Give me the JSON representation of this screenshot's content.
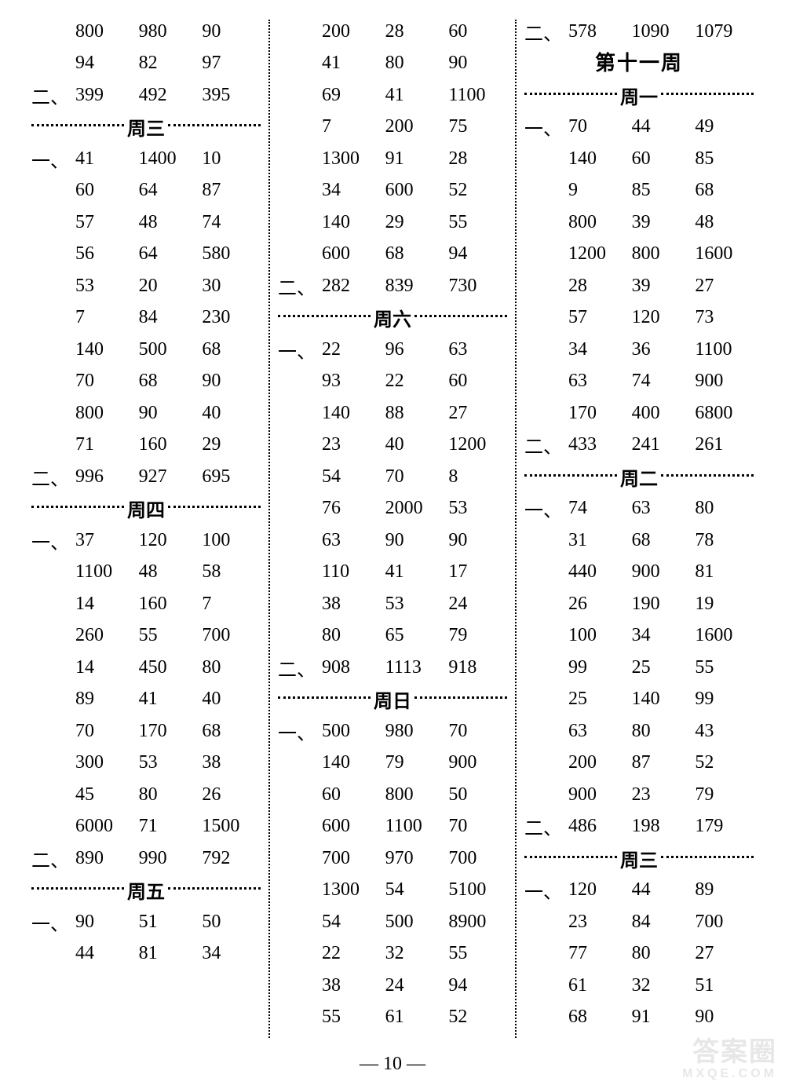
{
  "page_number": "— 10 —",
  "watermark": {
    "main": "答案圈",
    "sub": "MXQE.COM"
  },
  "prefixes": {
    "one": "一、",
    "two": "二、"
  },
  "columns": [
    {
      "items": [
        {
          "type": "row",
          "prefix": "",
          "cells": [
            "800",
            "980",
            "90"
          ]
        },
        {
          "type": "row",
          "prefix": "",
          "cells": [
            "94",
            "82",
            "97"
          ]
        },
        {
          "type": "row",
          "prefix": "two",
          "cells": [
            "399",
            "492",
            "395"
          ]
        },
        {
          "type": "day",
          "label": "周三"
        },
        {
          "type": "row",
          "prefix": "one",
          "cells": [
            "41",
            "1400",
            "10"
          ]
        },
        {
          "type": "row",
          "prefix": "",
          "cells": [
            "60",
            "64",
            "87"
          ]
        },
        {
          "type": "row",
          "prefix": "",
          "cells": [
            "57",
            "48",
            "74"
          ]
        },
        {
          "type": "row",
          "prefix": "",
          "cells": [
            "56",
            "64",
            "580"
          ]
        },
        {
          "type": "row",
          "prefix": "",
          "cells": [
            "53",
            "20",
            "30"
          ]
        },
        {
          "type": "row",
          "prefix": "",
          "cells": [
            "7",
            "84",
            "230"
          ]
        },
        {
          "type": "row",
          "prefix": "",
          "cells": [
            "140",
            "500",
            "68"
          ]
        },
        {
          "type": "row",
          "prefix": "",
          "cells": [
            "70",
            "68",
            "90"
          ]
        },
        {
          "type": "row",
          "prefix": "",
          "cells": [
            "800",
            "90",
            "40"
          ]
        },
        {
          "type": "row",
          "prefix": "",
          "cells": [
            "71",
            "160",
            "29"
          ]
        },
        {
          "type": "row",
          "prefix": "two",
          "cells": [
            "996",
            "927",
            "695"
          ]
        },
        {
          "type": "day",
          "label": "周四"
        },
        {
          "type": "row",
          "prefix": "one",
          "cells": [
            "37",
            "120",
            "100"
          ]
        },
        {
          "type": "row",
          "prefix": "",
          "cells": [
            "1100",
            "48",
            "58"
          ]
        },
        {
          "type": "row",
          "prefix": "",
          "cells": [
            "14",
            "160",
            "7"
          ]
        },
        {
          "type": "row",
          "prefix": "",
          "cells": [
            "260",
            "55",
            "700"
          ]
        },
        {
          "type": "row",
          "prefix": "",
          "cells": [
            "14",
            "450",
            "80"
          ]
        },
        {
          "type": "row",
          "prefix": "",
          "cells": [
            "89",
            "41",
            "40"
          ]
        },
        {
          "type": "row",
          "prefix": "",
          "cells": [
            "70",
            "170",
            "68"
          ]
        },
        {
          "type": "row",
          "prefix": "",
          "cells": [
            "300",
            "53",
            "38"
          ]
        },
        {
          "type": "row",
          "prefix": "",
          "cells": [
            "45",
            "80",
            "26"
          ]
        },
        {
          "type": "row",
          "prefix": "",
          "cells": [
            "6000",
            "71",
            "1500"
          ]
        },
        {
          "type": "row",
          "prefix": "two",
          "cells": [
            "890",
            "990",
            "792"
          ]
        },
        {
          "type": "day",
          "label": "周五"
        },
        {
          "type": "row",
          "prefix": "one",
          "cells": [
            "90",
            "51",
            "50"
          ]
        },
        {
          "type": "row",
          "prefix": "",
          "cells": [
            "44",
            "81",
            "34"
          ]
        }
      ]
    },
    {
      "items": [
        {
          "type": "row",
          "prefix": "",
          "cells": [
            "200",
            "28",
            "60"
          ]
        },
        {
          "type": "row",
          "prefix": "",
          "cells": [
            "41",
            "80",
            "90"
          ]
        },
        {
          "type": "row",
          "prefix": "",
          "cells": [
            "69",
            "41",
            "1100"
          ]
        },
        {
          "type": "row",
          "prefix": "",
          "cells": [
            "7",
            "200",
            "75"
          ]
        },
        {
          "type": "row",
          "prefix": "",
          "cells": [
            "1300",
            "91",
            "28"
          ]
        },
        {
          "type": "row",
          "prefix": "",
          "cells": [
            "34",
            "600",
            "52"
          ]
        },
        {
          "type": "row",
          "prefix": "",
          "cells": [
            "140",
            "29",
            "55"
          ]
        },
        {
          "type": "row",
          "prefix": "",
          "cells": [
            "600",
            "68",
            "94"
          ]
        },
        {
          "type": "row",
          "prefix": "two",
          "cells": [
            "282",
            "839",
            "730"
          ]
        },
        {
          "type": "day",
          "label": "周六"
        },
        {
          "type": "row",
          "prefix": "one",
          "cells": [
            "22",
            "96",
            "63"
          ]
        },
        {
          "type": "row",
          "prefix": "",
          "cells": [
            "93",
            "22",
            "60"
          ]
        },
        {
          "type": "row",
          "prefix": "",
          "cells": [
            "140",
            "88",
            "27"
          ]
        },
        {
          "type": "row",
          "prefix": "",
          "cells": [
            "23",
            "40",
            "1200"
          ]
        },
        {
          "type": "row",
          "prefix": "",
          "cells": [
            "54",
            "70",
            "8"
          ]
        },
        {
          "type": "row",
          "prefix": "",
          "cells": [
            "76",
            "2000",
            "53"
          ]
        },
        {
          "type": "row",
          "prefix": "",
          "cells": [
            "63",
            "90",
            "90"
          ]
        },
        {
          "type": "row",
          "prefix": "",
          "cells": [
            "110",
            "41",
            "17"
          ]
        },
        {
          "type": "row",
          "prefix": "",
          "cells": [
            "38",
            "53",
            "24"
          ]
        },
        {
          "type": "row",
          "prefix": "",
          "cells": [
            "80",
            "65",
            "79"
          ]
        },
        {
          "type": "row",
          "prefix": "two",
          "cells": [
            "908",
            "1113",
            "918"
          ]
        },
        {
          "type": "day",
          "label": "周日"
        },
        {
          "type": "row",
          "prefix": "one",
          "cells": [
            "500",
            "980",
            "70"
          ]
        },
        {
          "type": "row",
          "prefix": "",
          "cells": [
            "140",
            "79",
            "900"
          ]
        },
        {
          "type": "row",
          "prefix": "",
          "cells": [
            "60",
            "800",
            "50"
          ]
        },
        {
          "type": "row",
          "prefix": "",
          "cells": [
            "600",
            "1100",
            "70"
          ]
        },
        {
          "type": "row",
          "prefix": "",
          "cells": [
            "700",
            "970",
            "700"
          ]
        },
        {
          "type": "row",
          "prefix": "",
          "cells": [
            "1300",
            "54",
            "5100"
          ]
        },
        {
          "type": "row",
          "prefix": "",
          "cells": [
            "54",
            "500",
            "8900"
          ]
        },
        {
          "type": "row",
          "prefix": "",
          "cells": [
            "22",
            "32",
            "55"
          ]
        },
        {
          "type": "row",
          "prefix": "",
          "cells": [
            "38",
            "24",
            "94"
          ]
        },
        {
          "type": "row",
          "prefix": "",
          "cells": [
            "55",
            "61",
            "52"
          ]
        }
      ]
    },
    {
      "items": [
        {
          "type": "row",
          "prefix": "two",
          "cells": [
            "578",
            "1090",
            "1079"
          ]
        },
        {
          "type": "week",
          "label": "第十一周"
        },
        {
          "type": "day",
          "label": "周一"
        },
        {
          "type": "row",
          "prefix": "one",
          "cells": [
            "70",
            "44",
            "49"
          ]
        },
        {
          "type": "row",
          "prefix": "",
          "cells": [
            "140",
            "60",
            "85"
          ]
        },
        {
          "type": "row",
          "prefix": "",
          "cells": [
            "9",
            "85",
            "68"
          ]
        },
        {
          "type": "row",
          "prefix": "",
          "cells": [
            "800",
            "39",
            "48"
          ]
        },
        {
          "type": "row",
          "prefix": "",
          "cells": [
            "1200",
            "800",
            "1600"
          ]
        },
        {
          "type": "row",
          "prefix": "",
          "cells": [
            "28",
            "39",
            "27"
          ]
        },
        {
          "type": "row",
          "prefix": "",
          "cells": [
            "57",
            "120",
            "73"
          ]
        },
        {
          "type": "row",
          "prefix": "",
          "cells": [
            "34",
            "36",
            "1100"
          ]
        },
        {
          "type": "row",
          "prefix": "",
          "cells": [
            "63",
            "74",
            "900"
          ]
        },
        {
          "type": "row",
          "prefix": "",
          "cells": [
            "170",
            "400",
            "6800"
          ]
        },
        {
          "type": "row",
          "prefix": "two",
          "cells": [
            "433",
            "241",
            "261"
          ]
        },
        {
          "type": "day",
          "label": "周二"
        },
        {
          "type": "row",
          "prefix": "one",
          "cells": [
            "74",
            "63",
            "80"
          ]
        },
        {
          "type": "row",
          "prefix": "",
          "cells": [
            "31",
            "68",
            "78"
          ]
        },
        {
          "type": "row",
          "prefix": "",
          "cells": [
            "440",
            "900",
            "81"
          ]
        },
        {
          "type": "row",
          "prefix": "",
          "cells": [
            "26",
            "190",
            "19"
          ]
        },
        {
          "type": "row",
          "prefix": "",
          "cells": [
            "100",
            "34",
            "1600"
          ]
        },
        {
          "type": "row",
          "prefix": "",
          "cells": [
            "99",
            "25",
            "55"
          ]
        },
        {
          "type": "row",
          "prefix": "",
          "cells": [
            "25",
            "140",
            "99"
          ]
        },
        {
          "type": "row",
          "prefix": "",
          "cells": [
            "63",
            "80",
            "43"
          ]
        },
        {
          "type": "row",
          "prefix": "",
          "cells": [
            "200",
            "87",
            "52"
          ]
        },
        {
          "type": "row",
          "prefix": "",
          "cells": [
            "900",
            "23",
            "79"
          ]
        },
        {
          "type": "row",
          "prefix": "two",
          "cells": [
            "486",
            "198",
            "179"
          ]
        },
        {
          "type": "day",
          "label": "周三"
        },
        {
          "type": "row",
          "prefix": "one",
          "cells": [
            "120",
            "44",
            "89"
          ]
        },
        {
          "type": "row",
          "prefix": "",
          "cells": [
            "23",
            "84",
            "700"
          ]
        },
        {
          "type": "row",
          "prefix": "",
          "cells": [
            "77",
            "80",
            "27"
          ]
        },
        {
          "type": "row",
          "prefix": "",
          "cells": [
            "61",
            "32",
            "51"
          ]
        },
        {
          "type": "row",
          "prefix": "",
          "cells": [
            "68",
            "91",
            "90"
          ]
        }
      ]
    }
  ]
}
